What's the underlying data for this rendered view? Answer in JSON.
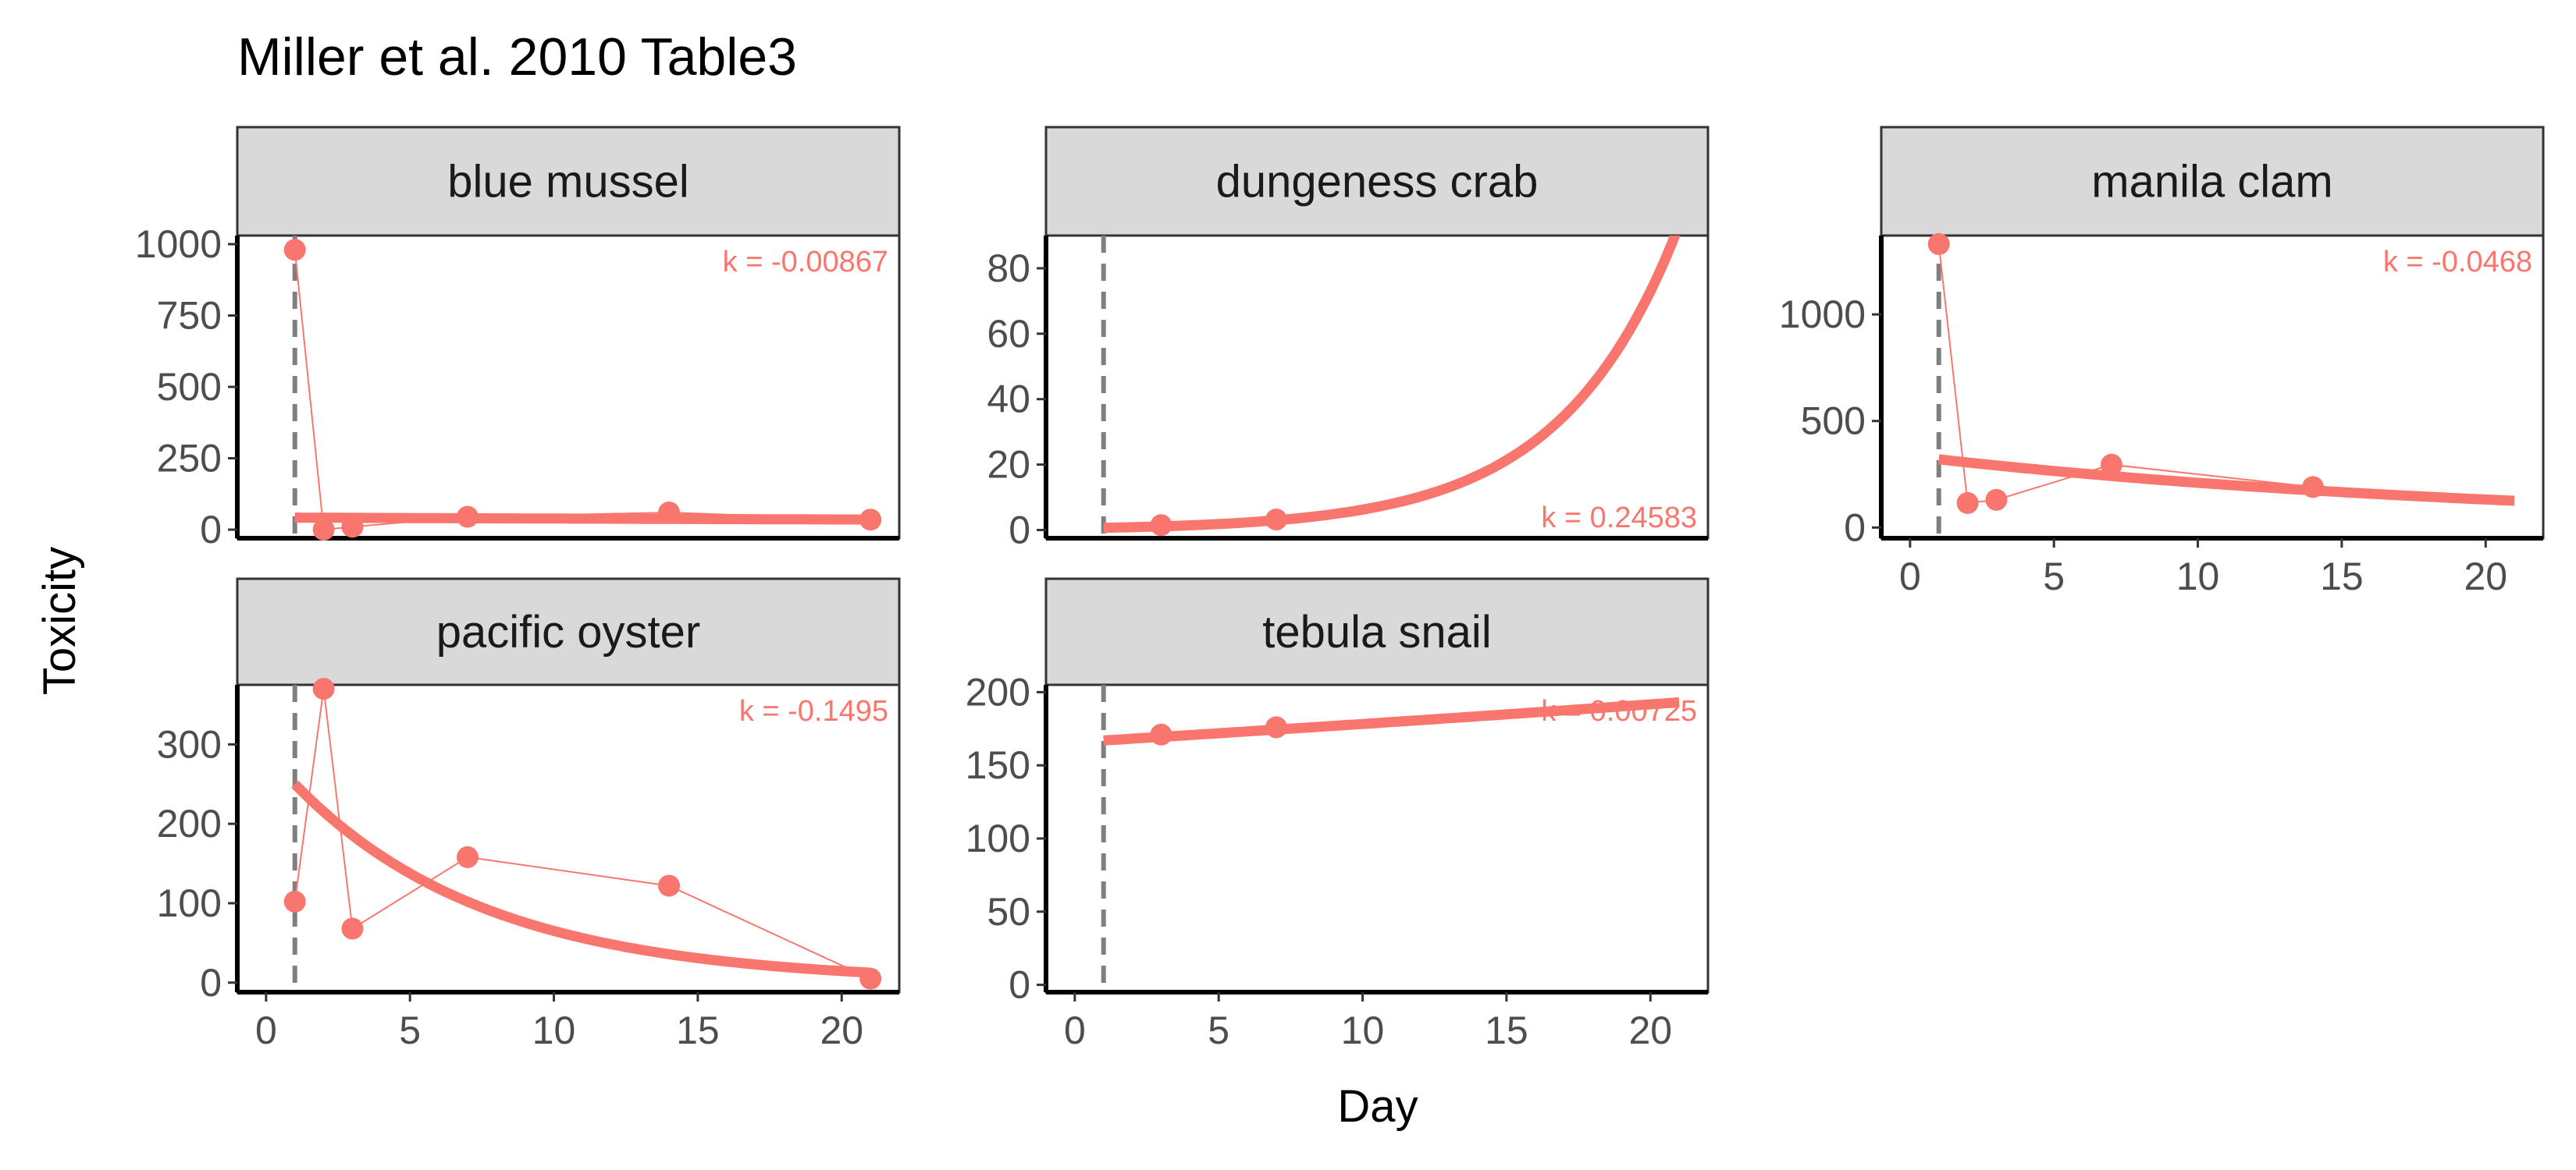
{
  "chart_data": {
    "type": "line",
    "title": "Miller et al. 2010 Table3",
    "xlabel": "Day",
    "ylabel": "Toxicity",
    "series_color": "#F8766D",
    "reference_line_color": "#7F7F7F",
    "strip_fill": "#D9D9D9",
    "grid": false,
    "legend": "none",
    "x_reference_day": 1,
    "xlim": [
      -1,
      22
    ],
    "x_ticks": [
      0,
      5,
      10,
      15,
      20
    ],
    "panels": [
      {
        "name": "blue mussel",
        "k_label": "k = -0.00867",
        "k_position": "top-right",
        "ylim": [
          -30,
          1030
        ],
        "y_ticks": [
          0,
          250,
          500,
          750,
          1000
        ],
        "points": [
          [
            1,
            980
          ],
          [
            2,
            0
          ],
          [
            3,
            10
          ],
          [
            7,
            45
          ],
          [
            14,
            60
          ],
          [
            21,
            35
          ]
        ],
        "fit": {
          "a": 42.0,
          "k": -0.00867,
          "x_start": 1,
          "x_end": 21
        }
      },
      {
        "name": "dungeness crab",
        "k_label": "k = 0.24583",
        "k_position": "bottom-right",
        "ylim": [
          -2.5,
          90
        ],
        "y_ticks": [
          0,
          20,
          40,
          60,
          80
        ],
        "points": [
          [
            3,
            1.5
          ],
          [
            7,
            3.2
          ]
        ],
        "fit": {
          "a": 0.683,
          "k": 0.24583,
          "x_start": 1,
          "x_end": 21
        }
      },
      {
        "name": "manila clam",
        "k_label": "k = -0.0468",
        "k_position": "top-right",
        "ylim": [
          -50,
          1370
        ],
        "y_ticks": [
          0,
          500,
          1000
        ],
        "points": [
          [
            1,
            1330
          ],
          [
            2,
            115
          ],
          [
            3,
            130
          ],
          [
            7,
            295
          ],
          [
            14,
            190
          ]
        ],
        "fit": {
          "a": 320,
          "k": -0.0468,
          "x_start": 1,
          "x_end": 21
        }
      },
      {
        "name": "pacific oyster",
        "k_label": "k = -0.1495",
        "k_position": "top-right",
        "ylim": [
          -12,
          375
        ],
        "y_ticks": [
          0,
          100,
          200,
          300
        ],
        "points": [
          [
            1,
            102
          ],
          [
            2,
            370
          ],
          [
            3,
            68
          ],
          [
            7,
            158
          ],
          [
            14,
            122
          ],
          [
            21,
            5
          ]
        ],
        "fit": {
          "a": 250,
          "k": -0.1495,
          "x_start": 1,
          "x_end": 21
        }
      },
      {
        "name": "tebula snail",
        "k_label": "k = 0.00725",
        "k_position": "top-right",
        "ylim": [
          -5,
          205
        ],
        "y_ticks": [
          0,
          50,
          100,
          150,
          200
        ],
        "points": [
          [
            3,
            171
          ],
          [
            7,
            176
          ]
        ],
        "fit": {
          "a": 167,
          "k": 0.00725,
          "x_start": 1,
          "x_end": 21
        }
      }
    ]
  }
}
